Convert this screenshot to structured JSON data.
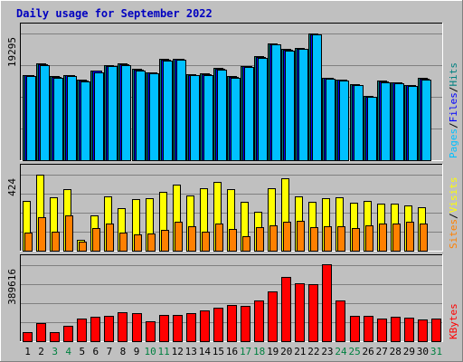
{
  "chart_data": {
    "type": "bar",
    "title": "Daily usage for September 2022",
    "categories": [
      "1",
      "2",
      "3",
      "4",
      "5",
      "6",
      "7",
      "8",
      "9",
      "10",
      "11",
      "12",
      "13",
      "14",
      "15",
      "16",
      "17",
      "18",
      "19",
      "20",
      "21",
      "22",
      "23",
      "24",
      "25",
      "26",
      "27",
      "28",
      "29",
      "30",
      "31"
    ],
    "weekend_days": [
      "3",
      "4",
      "10",
      "11",
      "17",
      "18",
      "24",
      "25",
      "31"
    ],
    "panels": [
      {
        "name": "hits-files-pages",
        "axis_max_label": "19295",
        "ylim": [
          0,
          19295
        ],
        "right_labels": [
          "Pages",
          "/",
          "Files",
          "/",
          "Hits"
        ],
        "series": [
          {
            "name": "Hits",
            "color": "#008080",
            "values": [
              13000,
              14700,
              12800,
              13000,
              12200,
              13700,
              14500,
              14700,
              13900,
              13400,
              15400,
              15500,
              13100,
              13200,
              14000,
              12800,
              14400,
              15800,
              17800,
              16900,
              17100,
              19295,
              12600,
              12300,
              11600,
              9800,
              12100,
              11900,
              11500,
              12500,
              0
            ]
          },
          {
            "name": "Files",
            "color": "#0000ff",
            "values": [
              12900,
              14600,
              12700,
              12900,
              12100,
              13600,
              14400,
              14600,
              13800,
              13300,
              15300,
              15400,
              13000,
              13100,
              13900,
              12700,
              14300,
              15700,
              17700,
              16800,
              17000,
              19200,
              12500,
              12200,
              11500,
              9700,
              12000,
              11800,
              11400,
              12400,
              0
            ]
          },
          {
            "name": "Pages",
            "color": "#00c0ff",
            "values": [
              12800,
              14500,
              12600,
              12800,
              12000,
              13300,
              14300,
              14500,
              13700,
              13200,
              15200,
              15300,
              12900,
              13000,
              13800,
              12600,
              14200,
              15600,
              17600,
              16700,
              16900,
              19100,
              12400,
              12100,
              11400,
              9600,
              11900,
              11700,
              11300,
              12300,
              0
            ]
          }
        ]
      },
      {
        "name": "visits-sites",
        "axis_max_label": "424",
        "ylim": [
          0,
          424
        ],
        "right_labels": [
          "Sites",
          "/",
          "Visits"
        ],
        "series": [
          {
            "name": "Visits",
            "color": "#ffff00",
            "values": [
              280,
              424,
              300,
              345,
              62,
              195,
              305,
              235,
              287,
              295,
              330,
              370,
              307,
              350,
              382,
              345,
              275,
              215,
              348,
              402,
              305,
              275,
              295,
              297,
              270,
              280,
              265,
              260,
              250,
              240,
              0
            ]
          },
          {
            "name": "Sites",
            "color": "#ff8000",
            "values": [
              100,
              185,
              105,
              195,
              48,
              125,
              150,
              100,
              92,
              98,
              115,
              160,
              135,
              105,
              150,
              120,
              80,
              130,
              140,
              160,
              165,
              130,
              135,
              135,
              125,
              140,
              150,
              150,
              160,
              150,
              0
            ]
          }
        ]
      },
      {
        "name": "kbytes",
        "axis_max_label": "389616",
        "ylim": [
          0,
          389616
        ],
        "right_labels": [
          "KBytes"
        ],
        "series": [
          {
            "name": "KBytes",
            "color": "#ff0000",
            "values": [
              45000,
              95000,
              48000,
              80000,
              115000,
              125000,
              130000,
              150000,
              145000,
              100000,
              135000,
              135000,
              145000,
              160000,
              170000,
              185000,
              180000,
              210000,
              255000,
              330000,
              295000,
              290000,
              392000,
              210000,
              130000,
              130000,
              115000,
              125000,
              120000,
              110000,
              115000
            ]
          }
        ]
      }
    ]
  }
}
